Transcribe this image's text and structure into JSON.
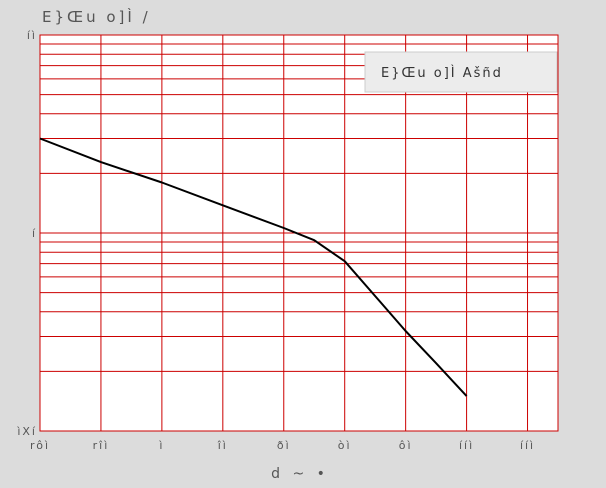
{
  "chart_data": {
    "type": "line",
    "title": "E}Œu o]Ì /",
    "xlabel": "d ~ •",
    "ylabel": "",
    "x_scale": "linear",
    "y_scale": "log",
    "xlim": [
      -50,
      120
    ],
    "ylim": [
      0.1,
      10
    ],
    "x_ticks": [
      -50,
      -30,
      -10,
      10,
      30,
      50,
      70,
      90,
      110
    ],
    "x_tick_labels": [
      "rôì",
      "rîì",
      "ì",
      "îì",
      "ðì",
      "òì",
      "ôì",
      "ííì",
      "ííì"
    ],
    "y_ticks": [
      0.1,
      1,
      10
    ],
    "y_tick_labels": [
      "ìXí",
      "í",
      "íì"
    ],
    "grid": true,
    "legend": {
      "label": "E}Œu o]Ì Ašñd",
      "position": "top-right"
    },
    "colors": {
      "background": "#dcdcdc",
      "plot_background": "#ffffff",
      "grid": "#cc0000",
      "line": "#000000",
      "text": "#555555"
    },
    "series": [
      {
        "name": "E}Œu o]Ì Ašñd",
        "x": [
          -50,
          -30,
          -10,
          10,
          30,
          40,
          50,
          60,
          70,
          80,
          90
        ],
        "y": [
          3.0,
          2.28,
          1.8,
          1.38,
          1.06,
          0.92,
          0.72,
          0.48,
          0.32,
          0.22,
          0.15
        ]
      }
    ]
  }
}
